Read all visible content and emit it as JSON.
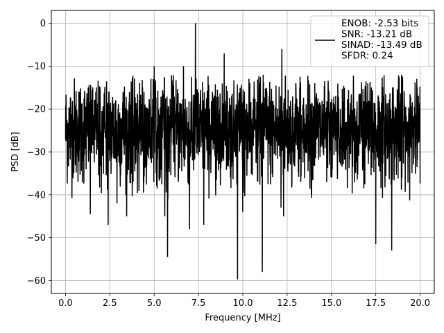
{
  "chart_data": {
    "type": "line",
    "xlabel": "Frequency [MHz]",
    "ylabel": "PSD [dB]",
    "xlim": [
      -0.8,
      20.8
    ],
    "ylim": [
      -63,
      3
    ],
    "xticks": [
      0.0,
      2.5,
      5.0,
      7.5,
      10.0,
      12.5,
      15.0,
      17.5,
      20.0
    ],
    "xtick_labels": [
      "0.0",
      "2.5",
      "5.0",
      "7.5",
      "10.0",
      "12.5",
      "15.0",
      "17.5",
      "20.0"
    ],
    "yticks": [
      0,
      -10,
      -20,
      -30,
      -40,
      -50,
      -60
    ],
    "ytick_labels": [
      "0",
      "−10",
      "−20",
      "−30",
      "−40",
      "−50",
      "−60"
    ],
    "grid": true,
    "legend_position": "top-right",
    "line_color": "#000000",
    "legend": {
      "lines": [
        "ENOB: -2.53 bits",
        "SNR: -13.21 dB",
        "SINAD: -13.49 dB",
        "SFDR: 0.24"
      ]
    },
    "series": [
      {
        "noise": {
          "x_start": 0.0,
          "x_end": 20.0,
          "points": 2048,
          "mean_db": -25,
          "spread_db": 6
        },
        "features": [
          {
            "x": 7.33,
            "y": 0
          },
          {
            "x": 8.95,
            "y": -7
          },
          {
            "x": 12.2,
            "y": -6
          },
          {
            "x": 6.65,
            "y": -10
          },
          {
            "x": 5.0,
            "y": -10
          },
          {
            "x": 11.15,
            "y": -12
          },
          {
            "x": 9.7,
            "y": -59.7
          },
          {
            "x": 11.1,
            "y": -58
          },
          {
            "x": 5.75,
            "y": -54.5
          },
          {
            "x": 18.4,
            "y": -53
          },
          {
            "x": 17.5,
            "y": -51.5
          },
          {
            "x": 7.0,
            "y": -48
          },
          {
            "x": 2.4,
            "y": -47
          },
          {
            "x": 7.8,
            "y": -47
          },
          {
            "x": 3.45,
            "y": -45
          },
          {
            "x": 1.4,
            "y": -44.5
          },
          {
            "x": 12.3,
            "y": -45
          },
          {
            "x": 5.6,
            "y": -45
          },
          {
            "x": 2.9,
            "y": -42
          },
          {
            "x": 10.0,
            "y": -44
          },
          {
            "x": 12.15,
            "y": -43
          }
        ]
      }
    ]
  }
}
